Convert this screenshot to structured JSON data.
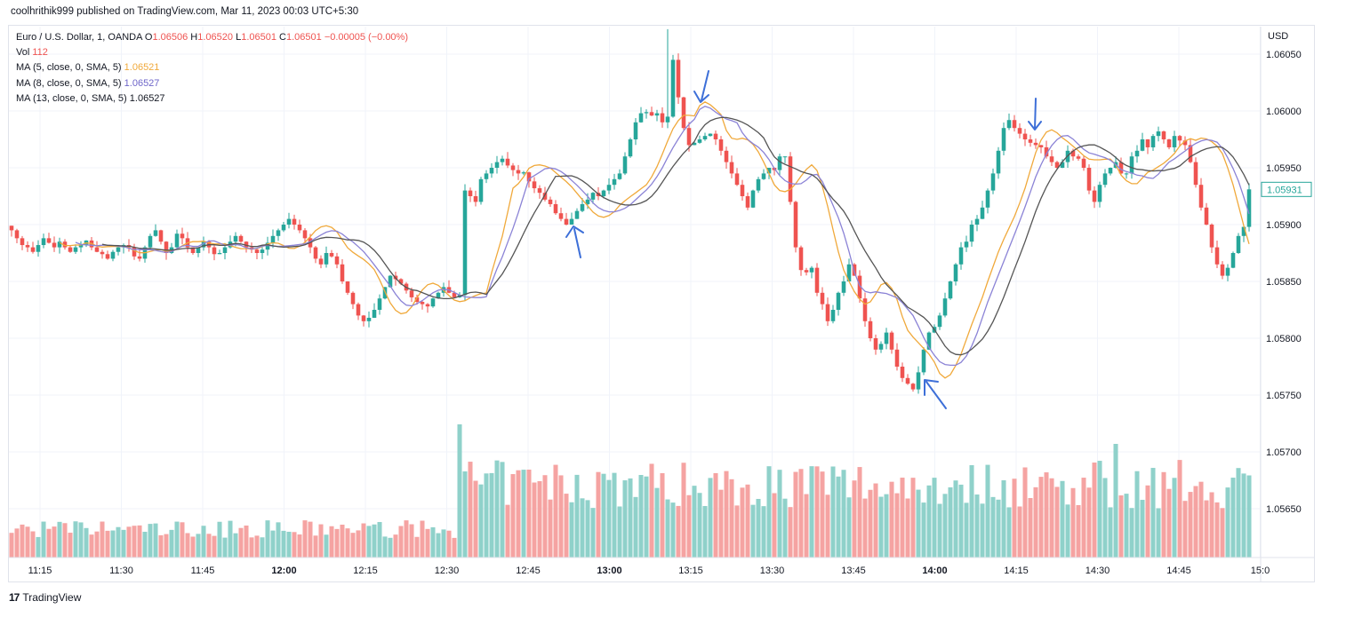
{
  "header": {
    "publisher_line": "coolhrithik999 published on TradingView.com, Mar 11, 2023 00:03 UTC+5:30"
  },
  "legend": {
    "symbol": "Euro / U.S. Dollar, 1, OANDA",
    "open_label": "O",
    "open": "1.06506",
    "high_label": "H",
    "high": "1.06520",
    "low_label": "L",
    "low": "1.06501",
    "close_label": "C",
    "close": "1.06501",
    "change": "−0.00005 (−0.00%)",
    "vol_label": "Vol",
    "vol": "112",
    "ma5_label": "MA (5, close, 0, SMA, 5)",
    "ma5": "1.06521",
    "ma8_label": "MA (8, close, 0, SMA, 5)",
    "ma8": "1.06527",
    "ma13_label": "MA (13, close, 0, SMA, 5)",
    "ma13": "1.06527"
  },
  "colors": {
    "up": "#26a69a",
    "down": "#ef5350",
    "up_vol": "#8fd1ca",
    "down_vol": "#f5a3a2",
    "ma5": "#f0a93b",
    "ma8": "#8b83d6",
    "ma13": "#555555",
    "arrow": "#3d6fd8",
    "grid": "#f0f3fa"
  },
  "footer": {
    "brand_mark": "17",
    "brand": "TradingView"
  },
  "chart_data": {
    "type": "candlestick",
    "currency": "USD",
    "current_price_label": "1.05931",
    "y_ticks": [
      "1.06050",
      "1.06000",
      "1.05950",
      "1.05900",
      "1.05850",
      "1.05800",
      "1.05750",
      "1.05700",
      "1.05650"
    ],
    "ylim": [
      1.0562,
      1.0608
    ],
    "x_ticks": [
      "11:15",
      "11:30",
      "11:45",
      "12:00",
      "12:15",
      "12:30",
      "12:45",
      "13:00",
      "13:15",
      "13:30",
      "13:45",
      "14:00",
      "14:15",
      "14:30",
      "14:45",
      "15:0"
    ],
    "x_start": "11:08",
    "bar_minutes": 1,
    "closes": [
      1.05895,
      1.05888,
      1.05882,
      1.0588,
      1.05876,
      1.05882,
      1.05888,
      1.05884,
      1.0588,
      1.05885,
      1.0588,
      1.05876,
      1.0588,
      1.05882,
      1.05886,
      1.0588,
      1.05876,
      1.05874,
      1.0587,
      1.05876,
      1.0588,
      1.05882,
      1.0588,
      1.05872,
      1.0587,
      1.0588,
      1.0589,
      1.05895,
      1.05885,
      1.05875,
      1.0588,
      1.05892,
      1.05888,
      1.0588,
      1.05875,
      1.0588,
      1.05885,
      1.0588,
      1.05874,
      1.05875,
      1.0588,
      1.05885,
      1.0589,
      1.05885,
      1.0588,
      1.05878,
      1.05875,
      1.05878,
      1.05884,
      1.0589,
      1.05895,
      1.059,
      1.05905,
      1.059,
      1.05895,
      1.05888,
      1.0588,
      1.0587,
      1.05865,
      1.05875,
      1.05872,
      1.05865,
      1.0585,
      1.0584,
      1.0583,
      1.0582,
      1.05815,
      1.05818,
      1.05825,
      1.05835,
      1.05845,
      1.05855,
      1.05852,
      1.05848,
      1.05842,
      1.05836,
      1.05832,
      1.0583,
      1.05828,
      1.05835,
      1.0584,
      1.05845,
      1.0584,
      1.05836,
      1.05838,
      1.0593,
      1.05925,
      1.0592,
      1.0594,
      1.05945,
      1.0595,
      1.05955,
      1.05958,
      1.05952,
      1.05948,
      1.05945,
      1.05946,
      1.05938,
      1.05932,
      1.05928,
      1.05922,
      1.05918,
      1.0591,
      1.05905,
      1.059,
      1.05905,
      1.05912,
      1.05918,
      1.05922,
      1.05928,
      1.05925,
      1.0593,
      1.05935,
      1.0594,
      1.05945,
      1.0596,
      1.05975,
      1.0599,
      1.05998,
      1.05999,
      1.05996,
      1.05998,
      1.0599,
      1.05995,
      1.06045,
      1.06012,
      1.05985,
      1.0597,
      1.05972,
      1.05975,
      1.05978,
      1.0598,
      1.05975,
      1.05965,
      1.05955,
      1.05945,
      1.05935,
      1.05925,
      1.05915,
      1.0593,
      1.0594,
      1.05945,
      1.0595,
      1.05948,
      1.0596,
      1.0596,
      1.0592,
      1.0588,
      1.0586,
      1.05858,
      1.05862,
      1.0584,
      1.0583,
      1.05815,
      1.05825,
      1.0584,
      1.0585,
      1.05865,
      1.05855,
      1.05835,
      1.05815,
      1.058,
      1.0579,
      1.05795,
      1.05805,
      1.0579,
      1.05775,
      1.05765,
      1.0576,
      1.05755,
      1.0577,
      1.0579,
      1.05805,
      1.0581,
      1.0582,
      1.05835,
      1.0585,
      1.05865,
      1.0588,
      1.05885,
      1.059,
      1.05905,
      1.05915,
      1.0593,
      1.05945,
      1.05965,
      1.05985,
      1.05992,
      1.05985,
      1.0598,
      1.05975,
      1.05972,
      1.0597,
      1.05968,
      1.0596,
      1.05955,
      1.0595,
      1.05955,
      1.05965,
      1.0596,
      1.05958,
      1.0595,
      1.0593,
      1.0592,
      1.05935,
      1.05945,
      1.0595,
      1.05955,
      1.05945,
      1.05945,
      1.0596,
      1.05965,
      1.05975,
      1.05968,
      1.05978,
      1.05982,
      1.05975,
      1.05968,
      1.05978,
      1.05974,
      1.0597,
      1.05955,
      1.05935,
      1.05915,
      1.059,
      1.0588,
      1.05865,
      1.05855,
      1.05862,
      1.05875,
      1.0589,
      1.05898,
      1.05931
    ]
  }
}
